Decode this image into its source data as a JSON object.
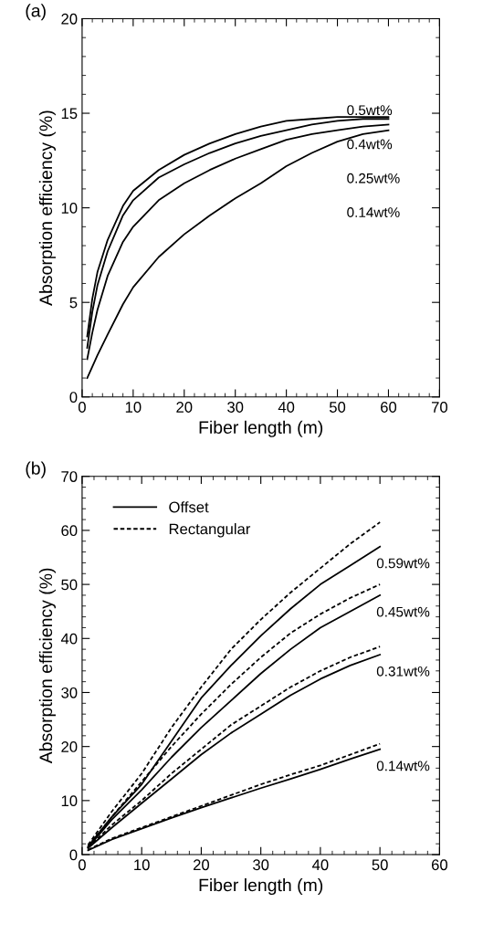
{
  "chart_data": [
    {
      "type": "line",
      "title": "(a)",
      "xlabel": "Fiber length (m)",
      "ylabel": "Absorption efficiency (%)",
      "x": [
        1,
        2,
        3,
        5,
        8,
        10,
        15,
        20,
        25,
        30,
        35,
        40,
        45,
        50,
        55,
        60
      ],
      "series": [
        {
          "color": "#000000",
          "values": [
            3.2,
            5.2,
            6.6,
            8.3,
            10.1,
            10.9,
            12.0,
            12.8,
            13.4,
            13.9,
            14.3,
            14.6,
            14.7,
            14.8,
            14.8,
            14.8
          ]
        },
        {
          "color": "#000000",
          "values": [
            2.6,
            4.5,
            5.9,
            7.7,
            9.6,
            10.4,
            11.6,
            12.3,
            12.9,
            13.4,
            13.8,
            14.1,
            14.4,
            14.6,
            14.7,
            14.7
          ]
        },
        {
          "color": "#000000",
          "values": [
            2.0,
            3.4,
            4.6,
            6.4,
            8.2,
            9.0,
            10.4,
            11.3,
            12.0,
            12.6,
            13.1,
            13.6,
            13.9,
            14.1,
            14.3,
            14.4
          ]
        },
        {
          "color": "#000000",
          "values": [
            1.0,
            1.6,
            2.2,
            3.3,
            4.9,
            5.8,
            7.4,
            8.6,
            9.6,
            10.5,
            11.3,
            12.2,
            12.9,
            13.5,
            13.9,
            14.1
          ]
        }
      ],
      "annotations": [
        "0.5wt%",
        "0.4wt%",
        "0.25wt%",
        "0.14wt%"
      ],
      "xlim": [
        0,
        70
      ],
      "ylim": [
        0,
        20
      ],
      "xticks": [
        0,
        10,
        20,
        30,
        40,
        50,
        60,
        70
      ],
      "yticks": [
        0,
        5,
        10,
        15,
        20
      ],
      "grid": false,
      "legend": false
    },
    {
      "type": "line",
      "title": "(b)",
      "xlabel": "Fiber length (m)",
      "ylabel": "Absorption efficiency (%)",
      "x": [
        1,
        5,
        10,
        15,
        20,
        25,
        30,
        35,
        40,
        45,
        50
      ],
      "series": [
        {
          "name": "Offset",
          "color": "#000000",
          "line_style": "solid",
          "values": [
            1.5,
            7,
            13,
            21,
            29,
            35,
            40.5,
            45.5,
            50,
            53.5,
            57
          ]
        },
        {
          "name": "Rectangular",
          "color": "#000000",
          "line_style": "dashed",
          "values": [
            1.8,
            8,
            15,
            23.5,
            31,
            38,
            43.5,
            48.5,
            53,
            57.5,
            61.5
          ]
        },
        {
          "color": "#000000",
          "line_style": "solid",
          "values": [
            1.3,
            6.5,
            12,
            18,
            23.5,
            28.5,
            33.5,
            38,
            42,
            45,
            48
          ]
        },
        {
          "color": "#000000",
          "line_style": "dashed",
          "values": [
            1.5,
            7,
            13.5,
            20,
            26,
            31.5,
            36.5,
            41,
            44.5,
            47.5,
            50
          ]
        },
        {
          "color": "#000000",
          "line_style": "solid",
          "values": [
            1.2,
            5,
            9.5,
            14,
            18.5,
            22.5,
            26,
            29.5,
            32.5,
            35,
            37
          ]
        },
        {
          "color": "#000000",
          "line_style": "dashed",
          "values": [
            1.3,
            5.5,
            10,
            15,
            19.5,
            24,
            27.5,
            31,
            34,
            36.5,
            38.5
          ]
        },
        {
          "color": "#000000",
          "line_style": "solid",
          "values": [
            0.8,
            2.8,
            4.8,
            6.8,
            8.7,
            10.5,
            12.3,
            14,
            15.8,
            17.7,
            19.5
          ]
        },
        {
          "color": "#000000",
          "line_style": "dashed",
          "values": [
            0.9,
            3,
            5,
            7,
            9,
            11,
            13,
            14.8,
            16.5,
            18.5,
            20.5
          ]
        }
      ],
      "annotations": [
        "0.59wt%",
        "0.45wt%",
        "0.31wt%",
        "0.14wt%"
      ],
      "xlim": [
        0,
        60
      ],
      "ylim": [
        0,
        70
      ],
      "xticks": [
        0,
        10,
        20,
        30,
        40,
        50,
        60
      ],
      "yticks": [
        0,
        10,
        20,
        30,
        40,
        50,
        60,
        70
      ],
      "grid": false,
      "legend": "top left"
    }
  ]
}
